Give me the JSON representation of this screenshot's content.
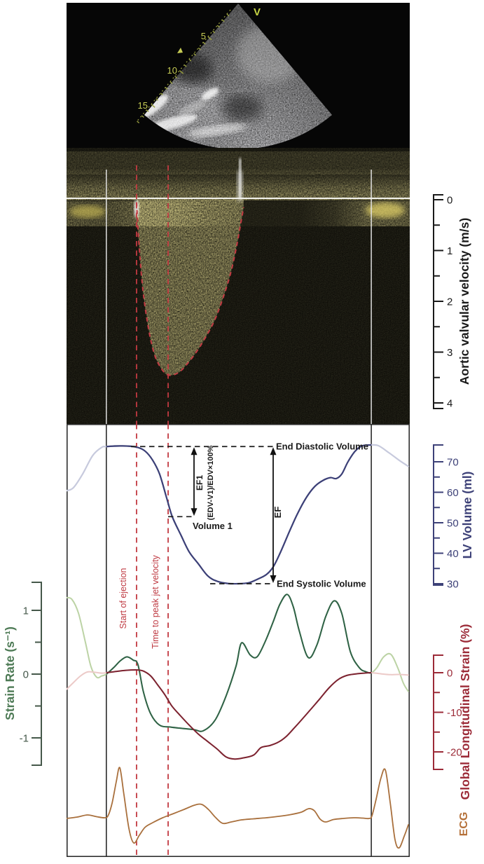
{
  "figure": {
    "description": "Echocardiography figure: 2D echo image, aortic valve CW Doppler spectrogram with traced jet envelope, LV volume curve, strain rate, global longitudinal strain and ECG over one cardiac cycle"
  },
  "ultrasound": {
    "orientation_marker": "V",
    "depth_labels": [
      "5",
      "10",
      "15"
    ]
  },
  "axes": {
    "velocity": {
      "title": "Aortic valvular velocity (m/s)",
      "ticks": [
        "0",
        "1",
        "2",
        "3",
        "4"
      ]
    },
    "volume": {
      "title": "LV Volume (ml)",
      "ticks": [
        "70",
        "60",
        "50",
        "40",
        "30"
      ]
    },
    "strain_rate": {
      "title": "Strain Rate (s⁻¹)",
      "ticks": [
        "1",
        "0",
        "-1"
      ]
    },
    "gls": {
      "title": "Global Longitudinal Strain (%)",
      "ticks": [
        "0",
        "-10",
        "-20"
      ]
    },
    "ecg": {
      "title": "ECG"
    }
  },
  "annotations": {
    "edv": {
      "label": "End Diastolic Volume",
      "value_ml": 75
    },
    "v1": {
      "label": "Volume 1",
      "value_ml": 52
    },
    "esv": {
      "label": "End Systolic Volume",
      "value_ml": 30
    },
    "ef1": {
      "label": "EF1",
      "formula": "(EDV-V1)/EDV×100%"
    },
    "ef": {
      "label": "EF"
    },
    "start_ejection": {
      "label": "Start of ejection",
      "t": 0.204
    },
    "time_to_peak": {
      "label": "Time to peak jet velocity",
      "t": 0.296
    },
    "cycle_start_t": 0.116,
    "cycle_end_t": 0.888
  },
  "colors": {
    "lv_volume": "#3c4077",
    "lv_volume_faded": "#c7cadd",
    "strain_rate": "#2f6247",
    "strain_rate_faded": "#bcd3a5",
    "gls": "#7c2330",
    "gls_faded": "#eccac8",
    "ecg": "#a9703d",
    "marker_red": "#c23a42",
    "velocity_axis": "#1a1a1a",
    "volume_axis": "#3d4178",
    "strain_axis": "#4d7a55",
    "gls_axis": "#9c2b38",
    "ecg_label": "#b5713a",
    "doppler_yellow": "#d8c75a",
    "us_scale": "#c6cc55",
    "annotation_black": "#1a1a1a"
  },
  "chart_data": [
    {
      "type": "line",
      "id": "lv_volume",
      "ylabel": "LV Volume (ml)",
      "axis_ticks": [
        70,
        60,
        50,
        40,
        30
      ],
      "x_unit": "normalized time (one displayed sweep)",
      "series": [
        {
          "name": "LV Volume",
          "points": [
            [
              0.0,
              60.5
            ],
            [
              0.02,
              61.5
            ],
            [
              0.047,
              66
            ],
            [
              0.076,
              72
            ],
            [
              0.102,
              74.7
            ],
            [
              0.116,
              75
            ],
            [
              0.163,
              75.2
            ],
            [
              0.204,
              74.8
            ],
            [
              0.229,
              73.5
            ],
            [
              0.251,
              70.5
            ],
            [
              0.271,
              66
            ],
            [
              0.292,
              58
            ],
            [
              0.308,
              52
            ],
            [
              0.333,
              46
            ],
            [
              0.357,
              40.5
            ],
            [
              0.384,
              36.5
            ],
            [
              0.412,
              32.5
            ],
            [
              0.439,
              30.8
            ],
            [
              0.469,
              30.1
            ],
            [
              0.5,
              30
            ],
            [
              0.531,
              30.3
            ],
            [
              0.557,
              31.5
            ],
            [
              0.582,
              33
            ],
            [
              0.602,
              35.5
            ],
            [
              0.622,
              40
            ],
            [
              0.647,
              46.5
            ],
            [
              0.673,
              53
            ],
            [
              0.7,
              58.5
            ],
            [
              0.724,
              62
            ],
            [
              0.749,
              64
            ],
            [
              0.769,
              64.8
            ],
            [
              0.786,
              64.5
            ],
            [
              0.802,
              66
            ],
            [
              0.82,
              70
            ],
            [
              0.841,
              73.5
            ],
            [
              0.861,
              75.2
            ],
            [
              0.882,
              75.5
            ],
            [
              0.908,
              75.3
            ],
            [
              0.939,
              73
            ],
            [
              0.969,
              70.5
            ],
            [
              0.996,
              68.5
            ]
          ]
        }
      ]
    },
    {
      "type": "line",
      "id": "strain_rate",
      "ylabel": "Strain Rate (s⁻¹)",
      "axis_ticks": [
        1,
        0,
        -1
      ],
      "x_unit": "normalized time (one displayed sweep)",
      "series": [
        {
          "name": "Strain Rate",
          "points": [
            [
              0.0,
              1.2
            ],
            [
              0.016,
              1.17
            ],
            [
              0.035,
              0.95
            ],
            [
              0.055,
              0.5
            ],
            [
              0.071,
              0.12
            ],
            [
              0.088,
              -0.05
            ],
            [
              0.102,
              -0.03
            ],
            [
              0.116,
              0.0
            ],
            [
              0.137,
              0.1
            ],
            [
              0.157,
              0.21
            ],
            [
              0.176,
              0.27
            ],
            [
              0.194,
              0.22
            ],
            [
              0.208,
              0.15
            ],
            [
              0.224,
              -0.28
            ],
            [
              0.245,
              -0.62
            ],
            [
              0.271,
              -0.8
            ],
            [
              0.302,
              -0.83
            ],
            [
              0.333,
              -0.85
            ],
            [
              0.371,
              -0.87
            ],
            [
              0.398,
              -0.89
            ],
            [
              0.433,
              -0.72
            ],
            [
              0.465,
              -0.34
            ],
            [
              0.494,
              0.13
            ],
            [
              0.51,
              0.49
            ],
            [
              0.535,
              0.3
            ],
            [
              0.555,
              0.27
            ],
            [
              0.578,
              0.5
            ],
            [
              0.602,
              0.82
            ],
            [
              0.622,
              1.1
            ],
            [
              0.643,
              1.25
            ],
            [
              0.661,
              1.05
            ],
            [
              0.678,
              0.68
            ],
            [
              0.704,
              0.26
            ],
            [
              0.729,
              0.45
            ],
            [
              0.755,
              0.9
            ],
            [
              0.78,
              1.15
            ],
            [
              0.802,
              0.95
            ],
            [
              0.827,
              0.35
            ],
            [
              0.853,
              0.1
            ],
            [
              0.871,
              0.04
            ],
            [
              0.888,
              0.02
            ],
            [
              0.904,
              0.1
            ],
            [
              0.924,
              0.27
            ],
            [
              0.945,
              0.31
            ],
            [
              0.965,
              0.1
            ],
            [
              0.982,
              -0.15
            ],
            [
              0.996,
              -0.27
            ]
          ]
        }
      ]
    },
    {
      "type": "line",
      "id": "gls",
      "ylabel": "Global Longitudinal Strain (%)",
      "axis_ticks": [
        0,
        -10,
        -20
      ],
      "x_unit": "normalized time (one displayed sweep)",
      "series": [
        {
          "name": "Global Longitudinal Strain",
          "points": [
            [
              0.0,
              -4.2
            ],
            [
              0.02,
              -2.5
            ],
            [
              0.041,
              -0.8
            ],
            [
              0.061,
              0.2
            ],
            [
              0.082,
              0.1
            ],
            [
              0.102,
              -0.1
            ],
            [
              0.116,
              0.0
            ],
            [
              0.143,
              0.3
            ],
            [
              0.173,
              0.6
            ],
            [
              0.204,
              0.7
            ],
            [
              0.224,
              0.4
            ],
            [
              0.245,
              -0.8
            ],
            [
              0.265,
              -3.0
            ],
            [
              0.286,
              -5.5
            ],
            [
              0.306,
              -8.3
            ],
            [
              0.331,
              -10.8
            ],
            [
              0.357,
              -13.2
            ],
            [
              0.384,
              -15.5
            ],
            [
              0.41,
              -17.3
            ],
            [
              0.439,
              -19.3
            ],
            [
              0.465,
              -21.3
            ],
            [
              0.49,
              -21.8
            ],
            [
              0.516,
              -21.5
            ],
            [
              0.545,
              -20.8
            ],
            [
              0.567,
              -18.9
            ],
            [
              0.592,
              -18.4
            ],
            [
              0.616,
              -17.6
            ],
            [
              0.639,
              -16.2
            ],
            [
              0.663,
              -14.0
            ],
            [
              0.688,
              -11.6
            ],
            [
              0.712,
              -9.2
            ],
            [
              0.739,
              -6.5
            ],
            [
              0.765,
              -3.8
            ],
            [
              0.792,
              -1.7
            ],
            [
              0.816,
              -0.7
            ],
            [
              0.843,
              -0.3
            ],
            [
              0.867,
              -0.1
            ],
            [
              0.888,
              0.0
            ],
            [
              0.918,
              -0.3
            ],
            [
              0.945,
              -0.5
            ],
            [
              0.969,
              -0.45
            ],
            [
              0.996,
              -0.6
            ]
          ]
        }
      ]
    },
    {
      "type": "line",
      "id": "ecg",
      "ylabel": "ECG (arbitrary units)",
      "x_unit": "normalized time (one displayed sweep)",
      "series": [
        {
          "name": "ECG",
          "points": [
            [
              0.0,
              0.0
            ],
            [
              0.031,
              0.04
            ],
            [
              0.061,
              0.1
            ],
            [
              0.088,
              0.05
            ],
            [
              0.112,
              0.02
            ],
            [
              0.122,
              0.1
            ],
            [
              0.133,
              0.45
            ],
            [
              0.145,
              1.05
            ],
            [
              0.155,
              1.45
            ],
            [
              0.167,
              0.7
            ],
            [
              0.182,
              -0.3
            ],
            [
              0.196,
              -0.7
            ],
            [
              0.212,
              -0.48
            ],
            [
              0.229,
              -0.25
            ],
            [
              0.251,
              -0.12
            ],
            [
              0.28,
              0.02
            ],
            [
              0.312,
              0.14
            ],
            [
              0.343,
              0.26
            ],
            [
              0.373,
              0.38
            ],
            [
              0.394,
              0.4
            ],
            [
              0.414,
              0.25
            ],
            [
              0.435,
              0.02
            ],
            [
              0.455,
              -0.14
            ],
            [
              0.48,
              -0.1
            ],
            [
              0.51,
              -0.04
            ],
            [
              0.545,
              -0.01
            ],
            [
              0.582,
              0.02
            ],
            [
              0.618,
              0.06
            ],
            [
              0.653,
              0.11
            ],
            [
              0.684,
              0.18
            ],
            [
              0.706,
              0.28
            ],
            [
              0.722,
              0.22
            ],
            [
              0.739,
              -0.02
            ],
            [
              0.755,
              -0.1
            ],
            [
              0.778,
              -0.03
            ],
            [
              0.806,
              0.0
            ],
            [
              0.837,
              0.02
            ],
            [
              0.863,
              0.01
            ],
            [
              0.882,
              0.0
            ],
            [
              0.89,
              0.08
            ],
            [
              0.902,
              0.55
            ],
            [
              0.916,
              1.15
            ],
            [
              0.929,
              1.38
            ],
            [
              0.943,
              0.45
            ],
            [
              0.957,
              -0.6
            ],
            [
              0.969,
              -0.84
            ],
            [
              0.984,
              -0.5
            ],
            [
              0.996,
              -0.18
            ]
          ]
        }
      ]
    },
    {
      "type": "line",
      "id": "aortic_velocity_envelope",
      "ylabel": "Aortic valvular velocity (m/s)",
      "axis_ticks": [
        0,
        1,
        2,
        3,
        4
      ],
      "peak_velocity_ms": 3.45,
      "x_unit": "normalized time (one displayed sweep)",
      "series": [
        {
          "name": "Traced jet envelope (dashed)",
          "points": [
            [
              0.204,
              0.05
            ],
            [
              0.208,
              0.55
            ],
            [
              0.214,
              1.15
            ],
            [
              0.222,
              1.75
            ],
            [
              0.233,
              2.3
            ],
            [
              0.245,
              2.75
            ],
            [
              0.259,
              3.1
            ],
            [
              0.276,
              3.32
            ],
            [
              0.292,
              3.44
            ],
            [
              0.31,
              3.45
            ],
            [
              0.331,
              3.38
            ],
            [
              0.353,
              3.22
            ],
            [
              0.378,
              3.0
            ],
            [
              0.404,
              2.72
            ],
            [
              0.431,
              2.38
            ],
            [
              0.455,
              1.95
            ],
            [
              0.478,
              1.45
            ],
            [
              0.496,
              0.9
            ],
            [
              0.508,
              0.45
            ],
            [
              0.516,
              0.15
            ]
          ]
        }
      ]
    }
  ]
}
